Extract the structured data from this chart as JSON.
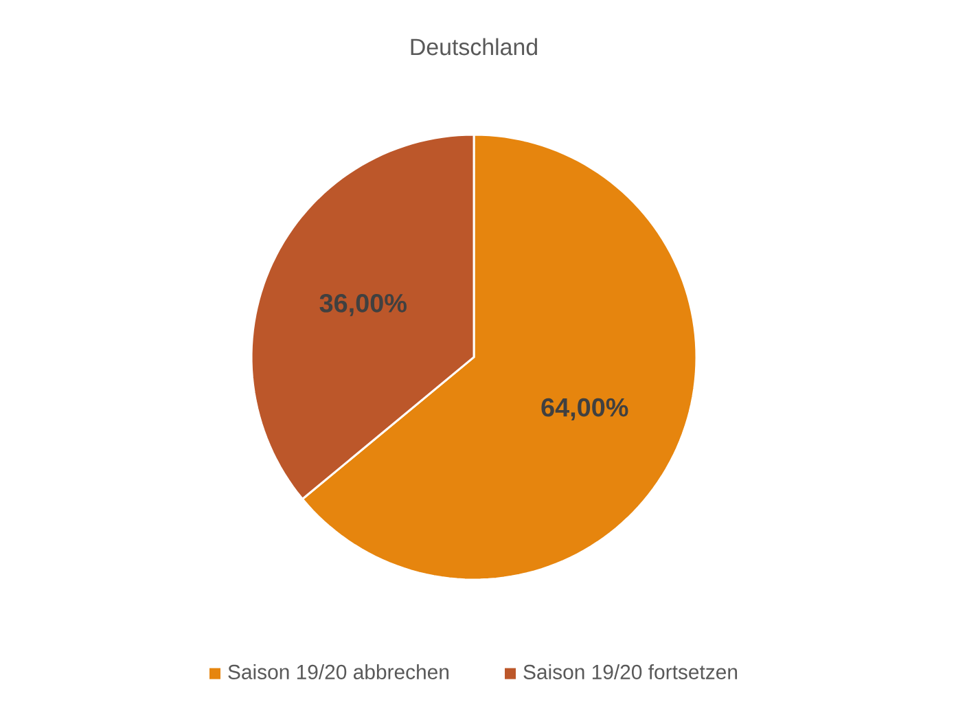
{
  "chart_data": {
    "type": "pie",
    "title": "Deutschland",
    "categories": [
      "Saison 19/20 abbrechen",
      "Saison 19/20 fortsetzen"
    ],
    "values": [
      64,
      36
    ],
    "colors": [
      "#e6850e",
      "#bc572a"
    ],
    "value_labels": [
      "64,00%",
      "36,00%"
    ],
    "legend": "bottom"
  }
}
